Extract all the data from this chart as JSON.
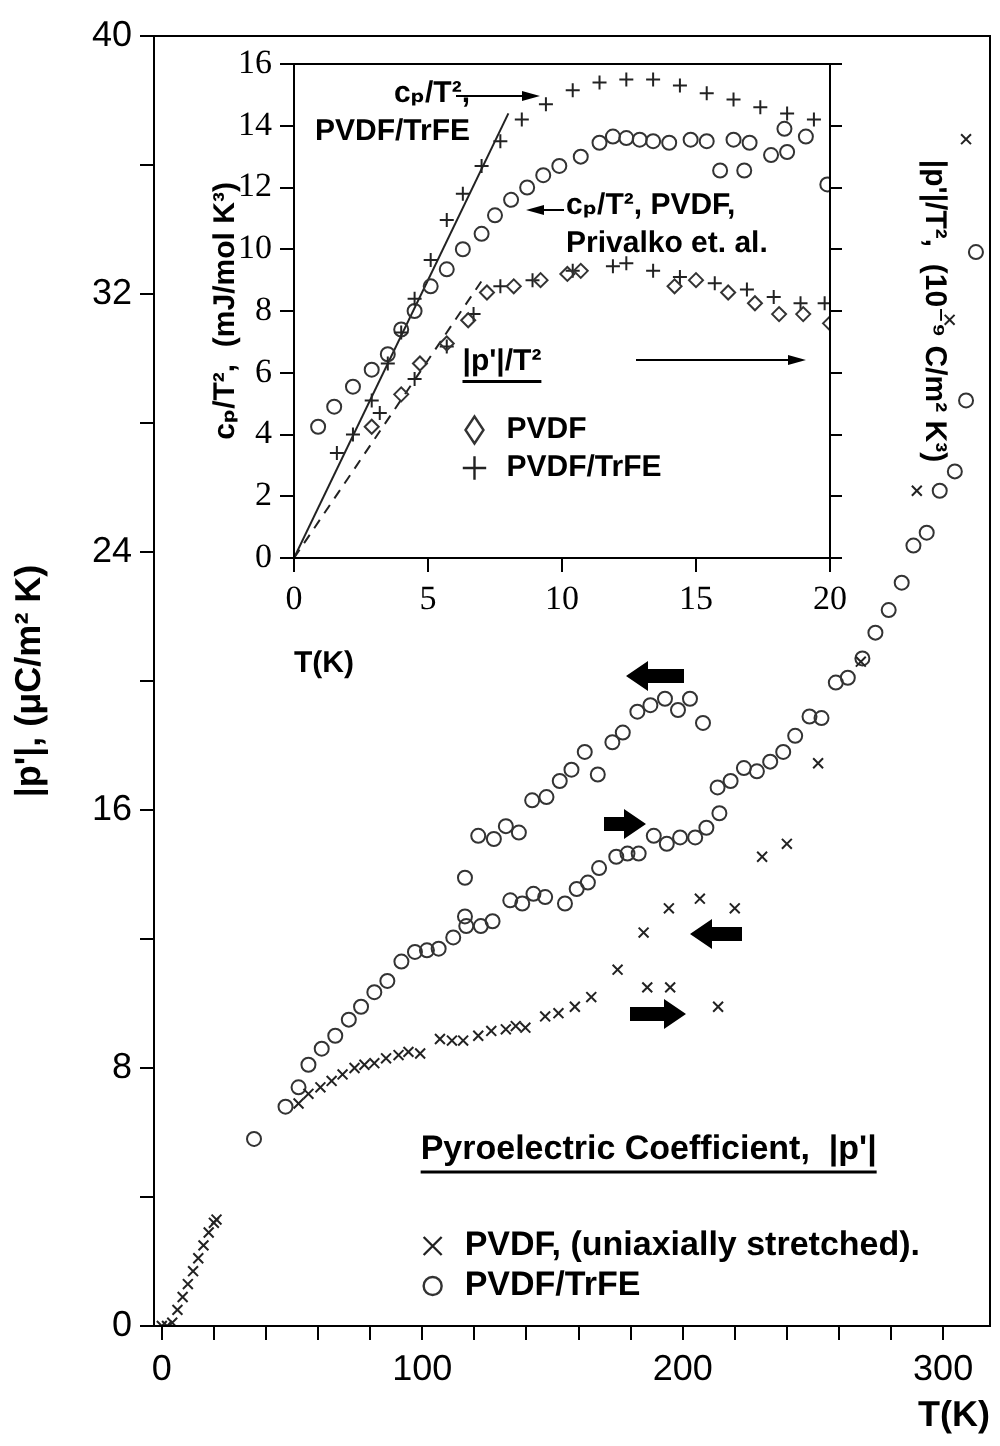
{
  "chart_data": [
    {
      "type": "scatter",
      "xlabel": "T(K)",
      "ylabel": "|p'|, (μC/m² K)",
      "legend_title": "Pyroelectric Coefficient,  |p'|",
      "legend": "bottom right",
      "xlim": [
        -3,
        318
      ],
      "ylim": [
        0,
        40
      ],
      "xticks": [
        0,
        {
          "value": 20,
          "label": null
        },
        {
          "value": 40,
          "label": null
        },
        {
          "value": 60,
          "label": null
        },
        {
          "value": 80,
          "label": null
        },
        100,
        {
          "value": 120,
          "label": null
        },
        {
          "value": 140,
          "label": null
        },
        {
          "value": 160,
          "label": null
        },
        {
          "value": 180,
          "label": null
        },
        200,
        {
          "value": 220,
          "label": null
        },
        {
          "value": 240,
          "label": null
        },
        {
          "value": 260,
          "label": null
        },
        {
          "value": 280,
          "label": null
        },
        300
      ],
      "yticks": [
        0,
        {
          "value": 4,
          "label": null
        },
        8,
        {
          "value": 12,
          "label": null
        },
        16,
        {
          "value": 20,
          "label": null
        },
        24,
        {
          "value": 28,
          "label": null
        },
        32,
        {
          "value": 36,
          "label": null
        },
        40
      ],
      "series": [
        {
          "name": "PVDF, (uniaxially stretched).",
          "marker": "cross",
          "color": "#222222",
          "x": [
            52.5,
            56.3,
            60.9,
            65.2,
            69.4,
            74,
            77.8,
            81.6,
            86.1,
            90.9,
            94.7,
            99.2,
            106.8,
            111.4,
            115.7,
            121.5,
            126.5,
            132.1,
            135.9,
            139.6,
            147.2,
            152.3,
            158.6,
            164.9,
            175,
            185,
            186.4,
            194.7,
            195.2,
            206.6,
            213.6,
            220,
            230.5,
            240,
            252,
            268.4,
            289.9,
            302.5,
            308.8
          ],
          "values": [
            6.9,
            7.2,
            7.4,
            7.6,
            7.8,
            8.0,
            8.1,
            8.15,
            8.3,
            8.4,
            8.5,
            8.45,
            8.9,
            8.85,
            8.85,
            9.0,
            9.15,
            9.2,
            9.3,
            9.25,
            9.6,
            9.7,
            9.9,
            10.2,
            11.05,
            12.2,
            10.5,
            12.95,
            10.5,
            13.25,
            9.9,
            12.95,
            14.55,
            14.95,
            17.45,
            20.6,
            25.9,
            31.2,
            36.8
          ]
        },
        {
          "name": "PVDF/TrFE",
          "marker": "circle",
          "color": "#333333",
          "x": [
            35.4,
            47.5,
            52.5,
            56.3,
            61.4,
            66.6,
            71.8,
            76.5,
            81.6,
            86.6,
            92,
            97.2,
            101.8,
            106.3,
            111.9,
            116.4,
            116.9,
            122.5,
            127,
            133.8,
            138.4,
            142.7,
            147.2,
            154.8,
            159.3,
            163.6,
            167.9,
            174.5,
            178.8,
            183.1,
            188.9,
            193.9,
            199,
            204.8,
            209.1,
            214.1,
            213.4,
            218.4,
            223.5,
            228.5,
            233.6,
            238.6,
            243.2,
            248.7,
            253.3,
            258.8,
            263.4,
            269,
            274,
            279.1,
            284.1,
            288.6,
            293.7,
            298.7,
            304.5,
            308.8,
            312.6,
            116.4,
            121.5,
            127.5,
            132.1,
            137.1,
            142.2,
            147.7,
            152.8,
            157.3,
            162.4,
            167.4,
            173,
            177,
            182.6,
            187.6,
            193.2,
            198.2,
            202.8,
            207.8
          ],
          "values": [
            5.8,
            6.8,
            7.4,
            8.1,
            8.6,
            9.0,
            9.5,
            9.9,
            10.35,
            10.7,
            11.3,
            11.6,
            11.65,
            11.7,
            12.05,
            12.7,
            12.4,
            12.4,
            12.55,
            13.2,
            13.1,
            13.4,
            13.3,
            13.1,
            13.55,
            13.75,
            14.2,
            14.55,
            14.65,
            14.65,
            15.2,
            14.95,
            15.15,
            15.15,
            15.45,
            15.9,
            16.7,
            16.9,
            17.3,
            17.2,
            17.5,
            17.8,
            18.3,
            18.9,
            18.85,
            19.95,
            20.1,
            20.7,
            21.5,
            22.2,
            23.05,
            24.2,
            24.6,
            25.9,
            26.5,
            28.7,
            33.3,
            13.9,
            15.2,
            15.1,
            15.5,
            15.3,
            16.3,
            16.4,
            16.9,
            17.25,
            17.8,
            17.1,
            18.1,
            18.4,
            19.05,
            19.25,
            19.45,
            19.1,
            19.45,
            18.7
          ]
        },
        {
          "marker": "cross",
          "color": "#222222",
          "x": [
            0,
            2,
            4,
            6,
            8,
            10,
            12,
            14,
            16,
            18,
            20,
            21
          ],
          "values": [
            0,
            0,
            0.1,
            0.5,
            0.9,
            1.3,
            1.7,
            2.1,
            2.5,
            2.9,
            3.2,
            3.3
          ]
        }
      ]
    },
    {
      "type": "scatter",
      "xlabel": "T(K)",
      "ylabel": "cₚ/T²,  (mJ/mol K³)",
      "y2label": "|p'|/T²,  (10⁻⁹ C/m² K³)",
      "legend_title": "|p'|/T²",
      "legend": "bottom",
      "xlim": [
        0,
        20
      ],
      "ylim": [
        0,
        16
      ],
      "xticks": [
        0,
        5,
        10,
        15,
        20
      ],
      "yticks": [
        0,
        2,
        4,
        6,
        8,
        10,
        12,
        14,
        16
      ],
      "annotations": [
        "cₚ/T², PVDF/TrFE",
        "cₚ/T², PVDF, Privalko et. al."
      ],
      "series": [
        {
          "marker": "cross",
          "color": "#222222",
          "x": [
            1.6,
            2.2,
            2.9,
            3.5,
            4.0,
            4.5,
            5.1,
            5.7,
            6.3,
            7.0,
            7.7,
            8.5,
            9.4,
            10.4,
            11.4,
            12.4,
            13.4,
            14.4,
            15.4,
            16.4,
            17.4,
            18.4,
            19.4
          ],
          "values": [
            3.4,
            4.0,
            5.1,
            6.3,
            7.3,
            8.4,
            9.65,
            10.95,
            11.8,
            12.7,
            13.5,
            14.2,
            14.7,
            15.15,
            15.4,
            15.5,
            15.5,
            15.3,
            15.05,
            14.85,
            14.6,
            14.4,
            14.2
          ]
        },
        {
          "marker": "circle",
          "color": "#333333",
          "x": [
            0.9,
            1.5,
            2.2,
            2.9,
            3.5,
            4.0,
            4.5,
            5.1,
            5.7,
            6.3,
            7.0,
            7.5,
            8.1,
            8.7,
            9.3,
            9.9,
            10.7,
            11.4,
            11.9,
            12.4,
            12.9,
            13.4,
            14.0,
            14.8,
            15.4,
            15.9,
            16.4,
            16.8,
            17.0,
            17.8,
            18.3,
            18.4,
            19.1,
            19.9
          ],
          "values": [
            4.25,
            4.9,
            5.55,
            6.1,
            6.6,
            7.4,
            8.0,
            8.8,
            9.35,
            10.0,
            10.5,
            11.1,
            11.6,
            12.0,
            12.4,
            12.7,
            13.0,
            13.45,
            13.65,
            13.6,
            13.55,
            13.5,
            13.45,
            13.55,
            13.5,
            12.55,
            13.55,
            12.55,
            13.45,
            13.05,
            13.9,
            13.15,
            13.65,
            12.1
          ]
        },
        {
          "name": "PVDF",
          "marker": "diamond",
          "color": "#333333",
          "x": [
            2.9,
            4,
            4.7,
            5.7,
            6.5,
            7.2,
            8.2,
            9.2,
            10.2,
            10.7,
            14.2,
            15.0,
            16.2,
            17.2,
            18.1,
            19,
            20
          ],
          "values": [
            4.25,
            5.3,
            6.3,
            6.95,
            7.7,
            8.6,
            8.8,
            9.0,
            9.2,
            9.3,
            8.8,
            9.0,
            8.6,
            8.25,
            7.9,
            7.9,
            7.6
          ]
        },
        {
          "name": "PVDF/TrFE",
          "marker": "cross",
          "color": "#222222",
          "x": [
            3.2,
            4.5,
            5.7,
            6.7,
            7.7,
            8.9,
            10.4,
            11.9,
            12.4,
            13.4,
            14.4,
            15.7,
            16.9,
            17.9,
            18.9,
            19.8
          ],
          "values": [
            4.7,
            5.8,
            6.85,
            7.9,
            8.8,
            9.0,
            9.3,
            9.45,
            9.55,
            9.3,
            9.1,
            8.9,
            8.7,
            8.45,
            8.25,
            8.25
          ]
        },
        {
          "type": "line",
          "line_style": "solid",
          "color": "#222222",
          "x": [
            0,
            8
          ],
          "values": [
            0,
            14.4
          ]
        },
        {
          "type": "line",
          "line_style": "dashed",
          "color": "#222222",
          "x": [
            0,
            7.1
          ],
          "values": [
            0,
            9.1
          ]
        }
      ]
    }
  ]
}
